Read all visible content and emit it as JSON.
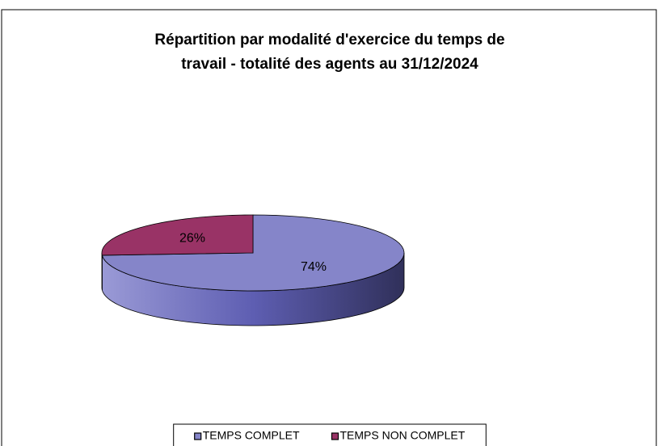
{
  "chart_data": {
    "type": "pie",
    "title": [
      "Répartition par modalité d'exercice du temps de",
      "travail - totalité des agents au 31/12/2024"
    ],
    "categories": [
      "TEMPS COMPLET",
      "TEMPS NON COMPLET"
    ],
    "values": [
      74,
      26
    ],
    "value_labels": [
      "74%",
      "26%"
    ],
    "colors": [
      "#8585c9",
      "#993366"
    ],
    "legend": "bottom"
  }
}
